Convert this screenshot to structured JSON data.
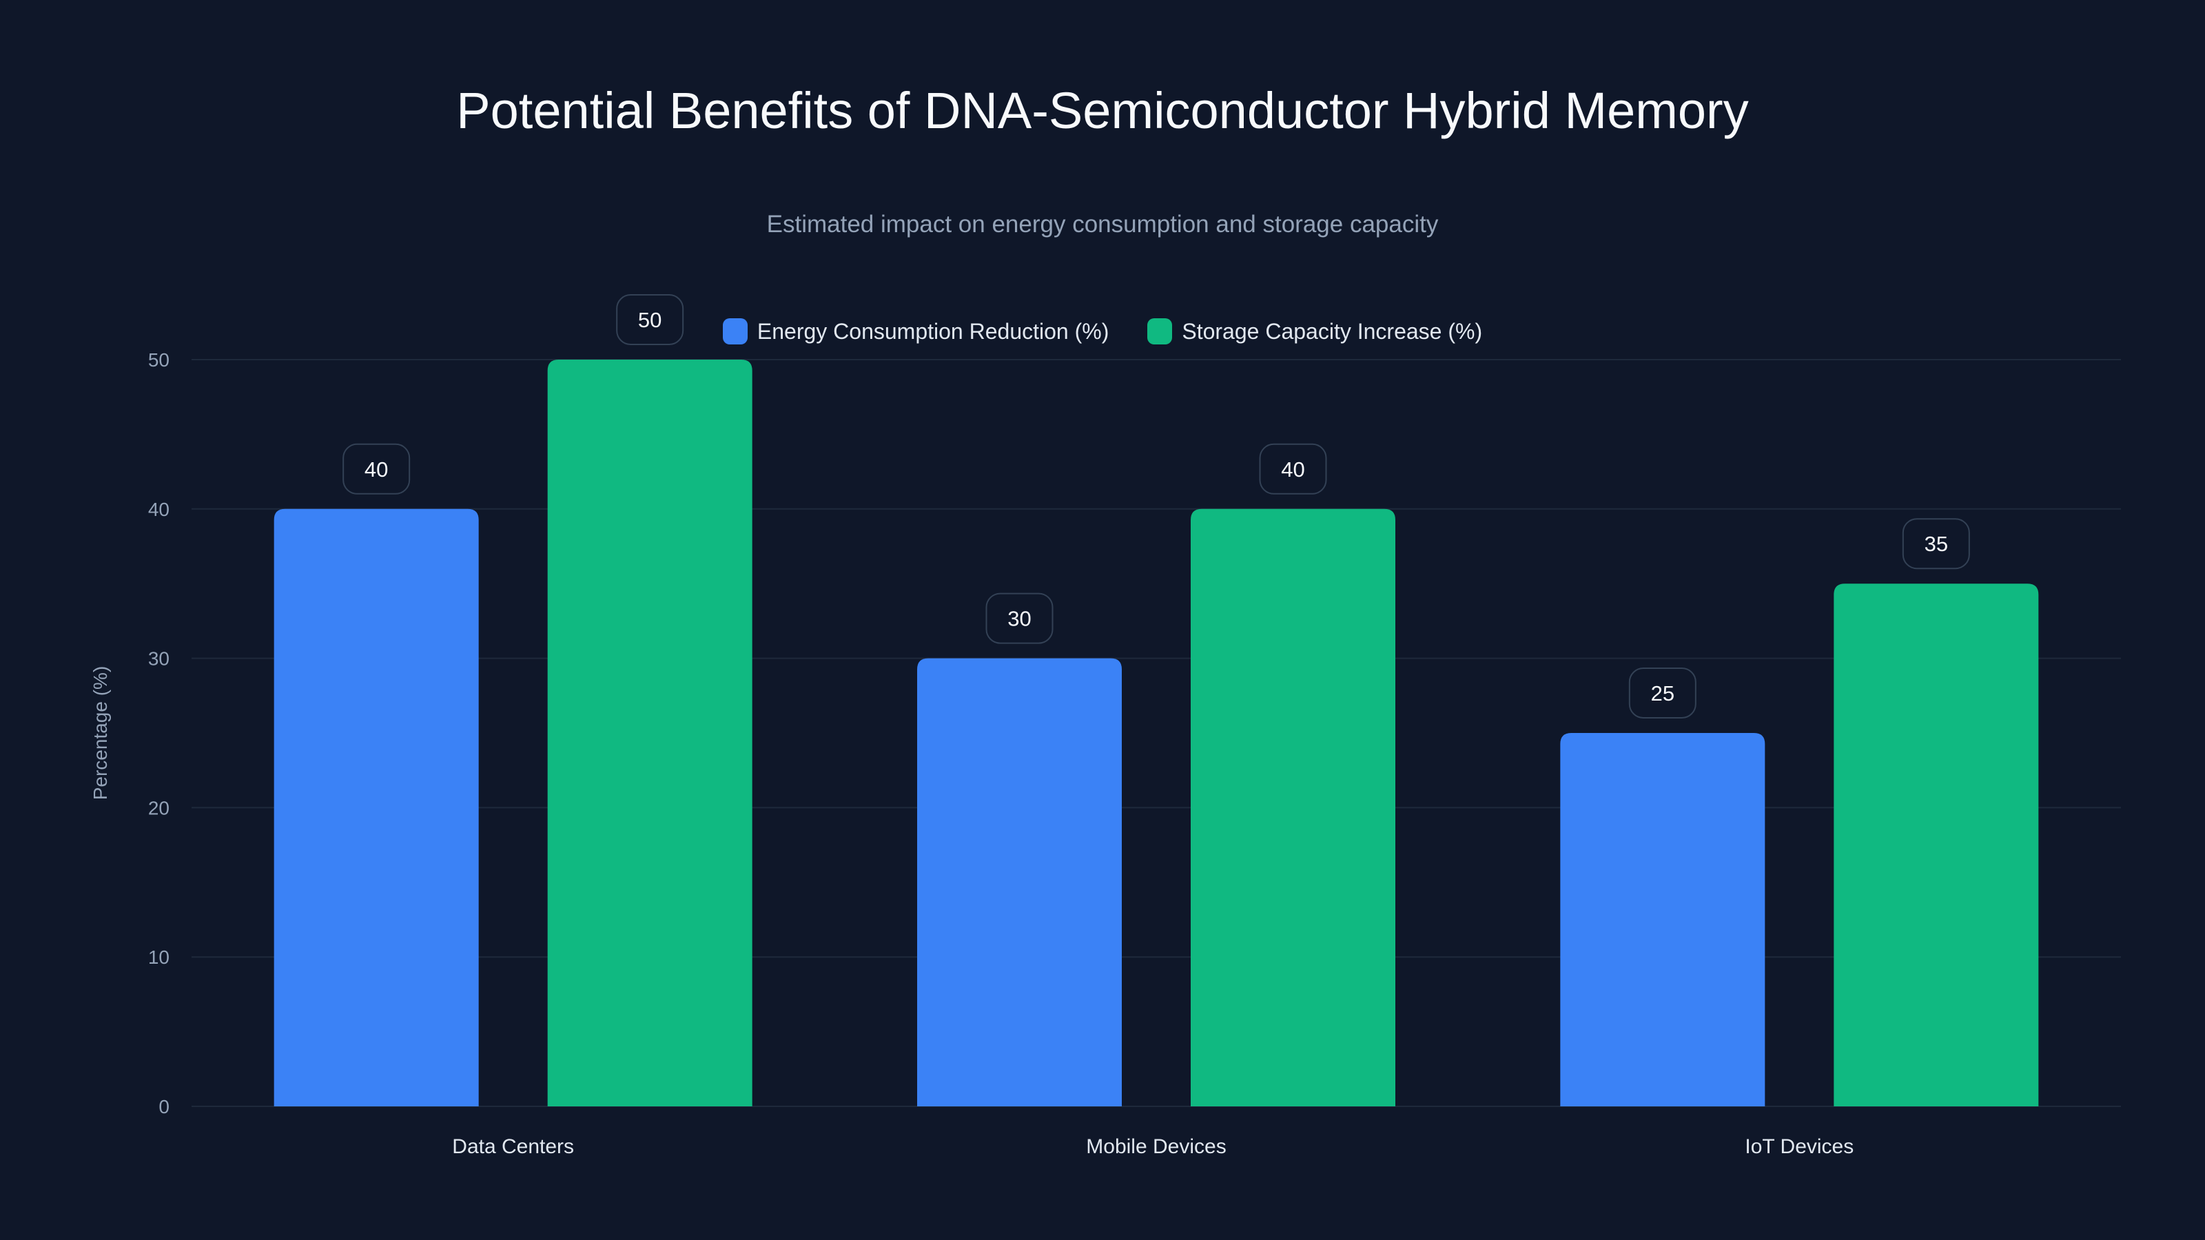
{
  "chart_data": {
    "type": "bar",
    "title": "Potential Benefits of DNA-Semiconductor Hybrid Memory",
    "subtitle": "Estimated impact on energy consumption and storage capacity",
    "xlabel": "",
    "ylabel": "Percentage (%)",
    "ylim": [
      0,
      50
    ],
    "yticks": [
      0,
      10,
      20,
      30,
      40,
      50
    ],
    "grid": true,
    "legend_placement": "top-center",
    "categories": [
      "Data Centers",
      "Mobile Devices",
      "IoT Devices"
    ],
    "series": [
      {
        "name": "Energy Consumption Reduction (%)",
        "color": "#3b82f6",
        "values": [
          40,
          30,
          25
        ]
      },
      {
        "name": "Storage Capacity Increase (%)",
        "color": "#10b981",
        "values": [
          50,
          40,
          35
        ]
      }
    ]
  }
}
